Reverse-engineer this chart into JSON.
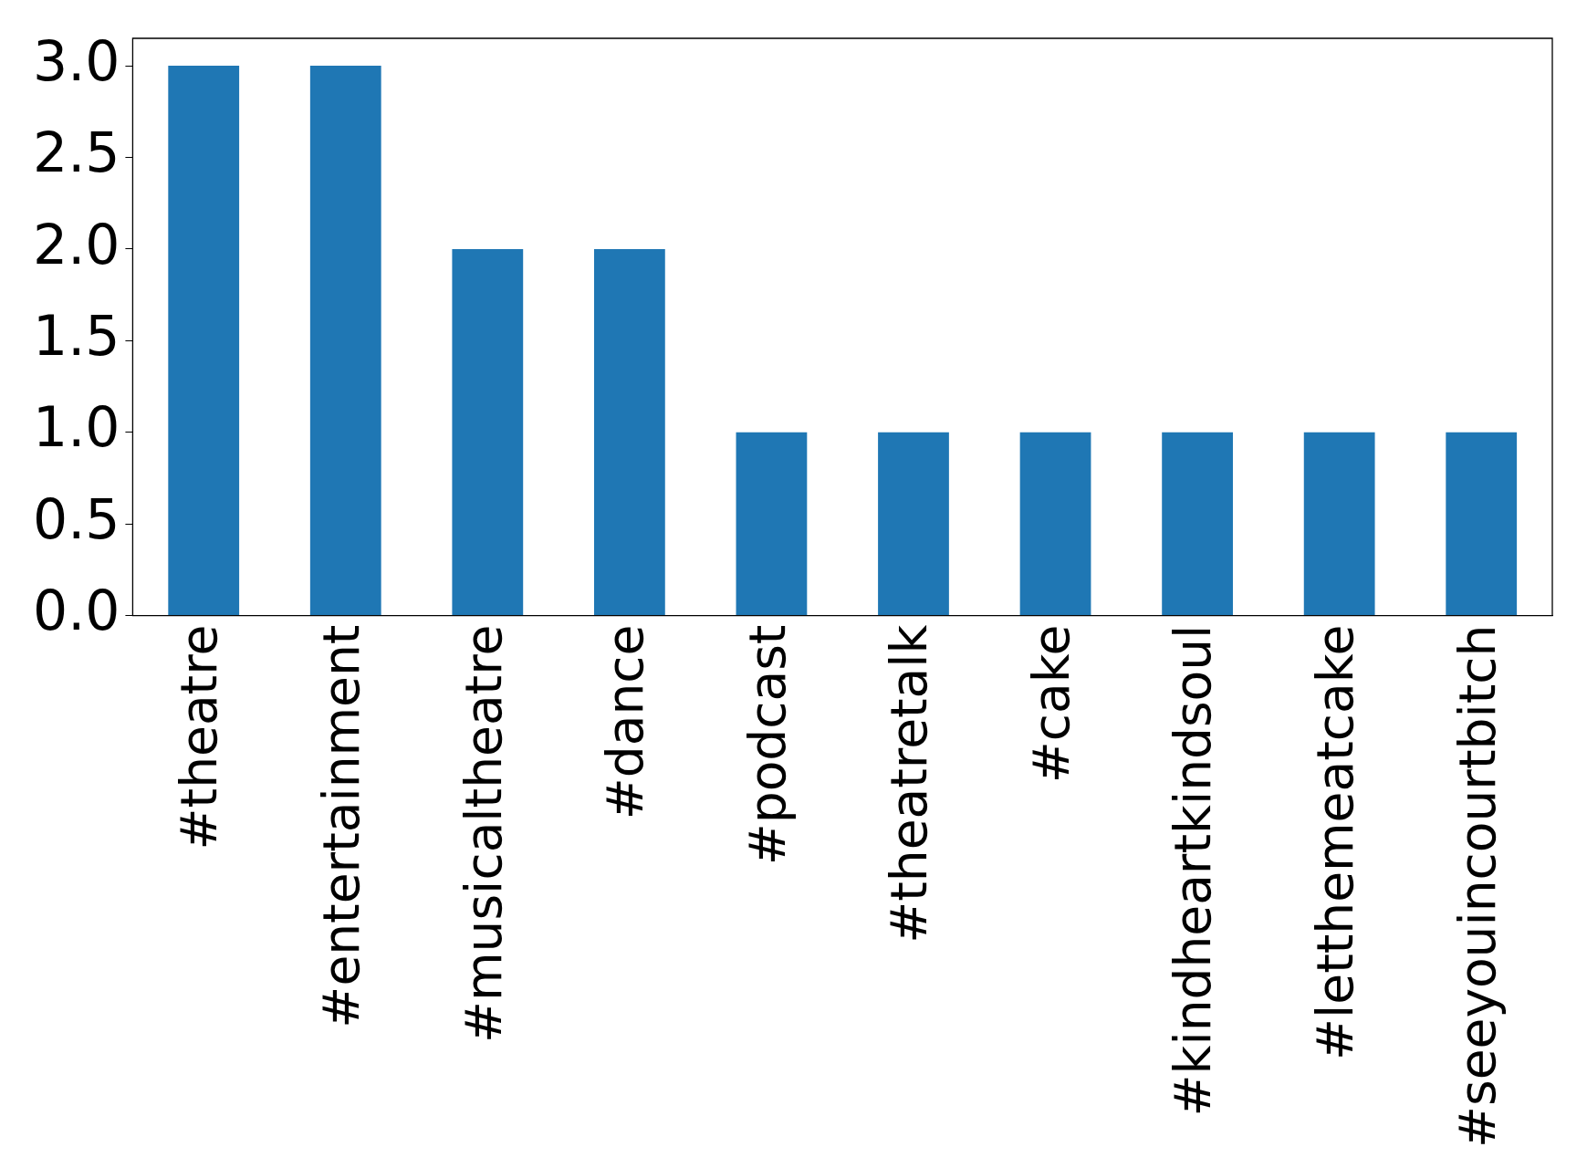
{
  "chart_data": {
    "type": "bar",
    "categories": [
      "#theatre",
      "#entertainment",
      "#musicaltheatre",
      "#dance",
      "#podcast",
      "#theatretalk",
      "#cake",
      "#kindheartkindsoul",
      "#letthemeatcake",
      "#seeyouincourtbitch"
    ],
    "values": [
      3,
      3,
      2,
      2,
      1,
      1,
      1,
      1,
      1,
      1
    ],
    "color": "#1f77b4",
    "ylim": [
      0,
      3.15
    ],
    "yticks": [
      {
        "value": 0,
        "label": "0.0"
      },
      {
        "value": 0.5,
        "label": "0.5"
      },
      {
        "value": 1,
        "label": "1.0"
      },
      {
        "value": 1.5,
        "label": "1.5"
      },
      {
        "value": 2,
        "label": "2.0"
      },
      {
        "value": 2.5,
        "label": "2.5"
      },
      {
        "value": 3,
        "label": "3.0"
      }
    ],
    "grid": false,
    "legend": false
  }
}
